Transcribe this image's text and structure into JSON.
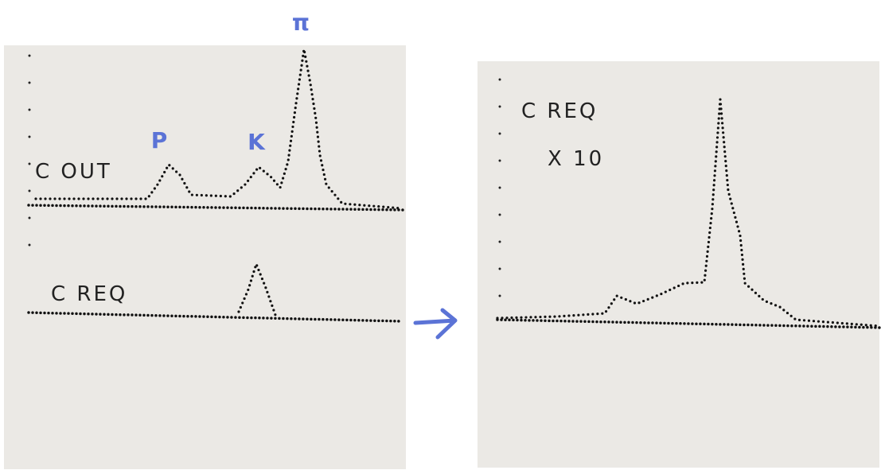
{
  "left_panel": {
    "marker_pi": "π",
    "marker_p": "P",
    "marker_k": "K",
    "label_top": "C OUT",
    "label_bottom": "C REQ"
  },
  "right_panel": {
    "label": "C REQ",
    "scale": "X 10"
  }
}
